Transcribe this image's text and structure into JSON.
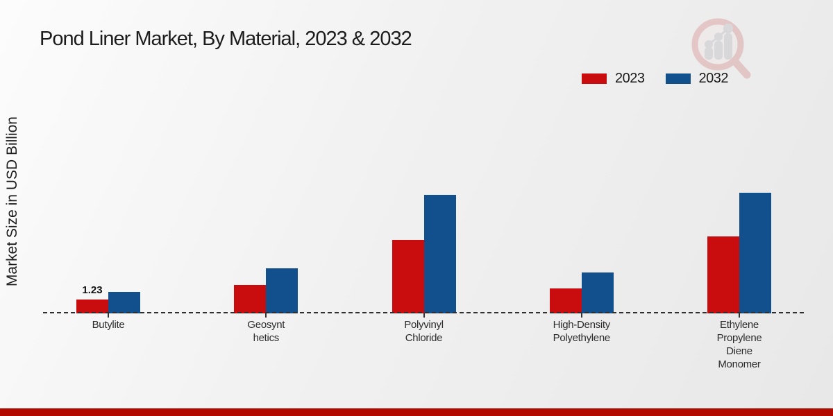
{
  "title": "Pond Liner Market, By Material, 2023 & 2032",
  "y_axis_label": "Market Size in USD Billion",
  "legend": {
    "position": "top-right",
    "items": [
      {
        "label": "2023",
        "color": "#c90c0e"
      },
      {
        "label": "2032",
        "color": "#11508d"
      }
    ]
  },
  "chart_data": {
    "type": "bar",
    "title": "Pond Liner Market, By Material, 2023 & 2032",
    "xlabel": "",
    "ylabel": "Market Size in USD Billion",
    "ylim": [
      0,
      12
    ],
    "grid": false,
    "baseline_style": "dashed",
    "legend_position": "top-right",
    "categories": [
      "Butylite",
      "Geosynthetics",
      "Polyvinyl Chloride",
      "High-Density Polyethylene",
      "Ethylene Propylene Diene Monomer"
    ],
    "category_display_lines": [
      [
        "Butylite"
      ],
      [
        "Geosynt",
        "hetics"
      ],
      [
        "Polyvinyl",
        "Chloride"
      ],
      [
        "High-Density",
        "Polyethylene"
      ],
      [
        "Ethylene",
        "Propylene",
        "Diene",
        "Monomer"
      ]
    ],
    "series": [
      {
        "name": "2023",
        "color": "#c90c0e",
        "values": [
          1.23,
          2.5,
          6.5,
          2.2,
          6.8
        ]
      },
      {
        "name": "2032",
        "color": "#11508d",
        "values": [
          1.9,
          4.0,
          10.5,
          3.6,
          10.7
        ]
      }
    ],
    "data_labels": [
      {
        "series": "2023",
        "category": "Butylite",
        "text": "1.23"
      }
    ]
  },
  "colors": {
    "series_2023": "#c90c0e",
    "series_2032": "#11508d",
    "bottom_band": "#b20a00",
    "axis_line": "#2f2f2f",
    "watermark_pink": "#dba8a6",
    "watermark_gray": "#c7c7cb"
  }
}
